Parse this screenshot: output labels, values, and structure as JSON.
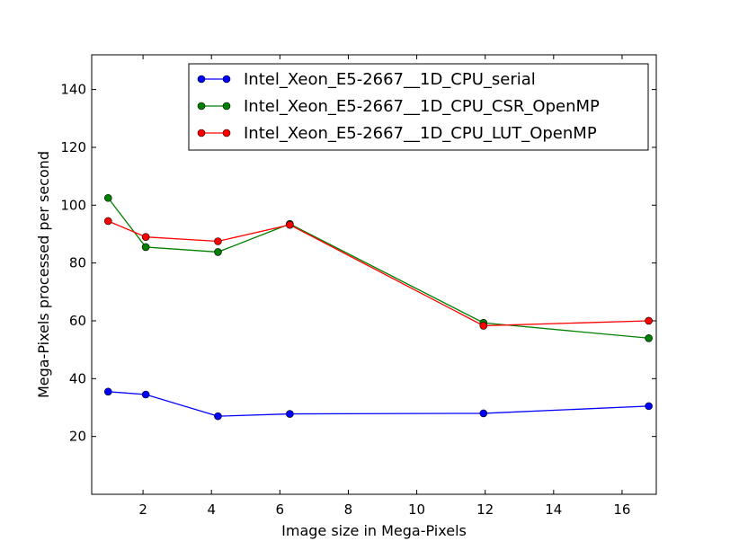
{
  "chart_data": {
    "type": "line",
    "title": "",
    "xlabel": "Image size in Mega-Pixels",
    "ylabel": "Mega-Pixels processed per second",
    "xlim": [
      0.5,
      17
    ],
    "ylim": [
      0,
      152
    ],
    "xticks": [
      2,
      4,
      6,
      8,
      10,
      12,
      14,
      16
    ],
    "yticks": [
      20,
      40,
      60,
      80,
      100,
      120,
      140
    ],
    "grid": false,
    "legend_position": "top-right",
    "x": [
      0.98,
      2.08,
      4.19,
      6.29,
      11.95,
      16.78
    ],
    "series": [
      {
        "name": "Intel_Xeon_E5-2667__1D_CPU_serial",
        "color": "#0000ff",
        "values": [
          35.5,
          34.5,
          27.0,
          27.8,
          28.0,
          30.5
        ]
      },
      {
        "name": "Intel_Xeon_E5-2667__1D_CPU_CSR_OpenMP",
        "color": "#008000",
        "values": [
          102.5,
          85.5,
          83.8,
          93.5,
          59.3,
          54.0
        ]
      },
      {
        "name": "Intel_Xeon_E5-2667__1D_CPU_LUT_OpenMP",
        "color": "#ff0000",
        "values": [
          94.5,
          89.0,
          87.5,
          93.2,
          58.3,
          60.0
        ]
      }
    ]
  }
}
